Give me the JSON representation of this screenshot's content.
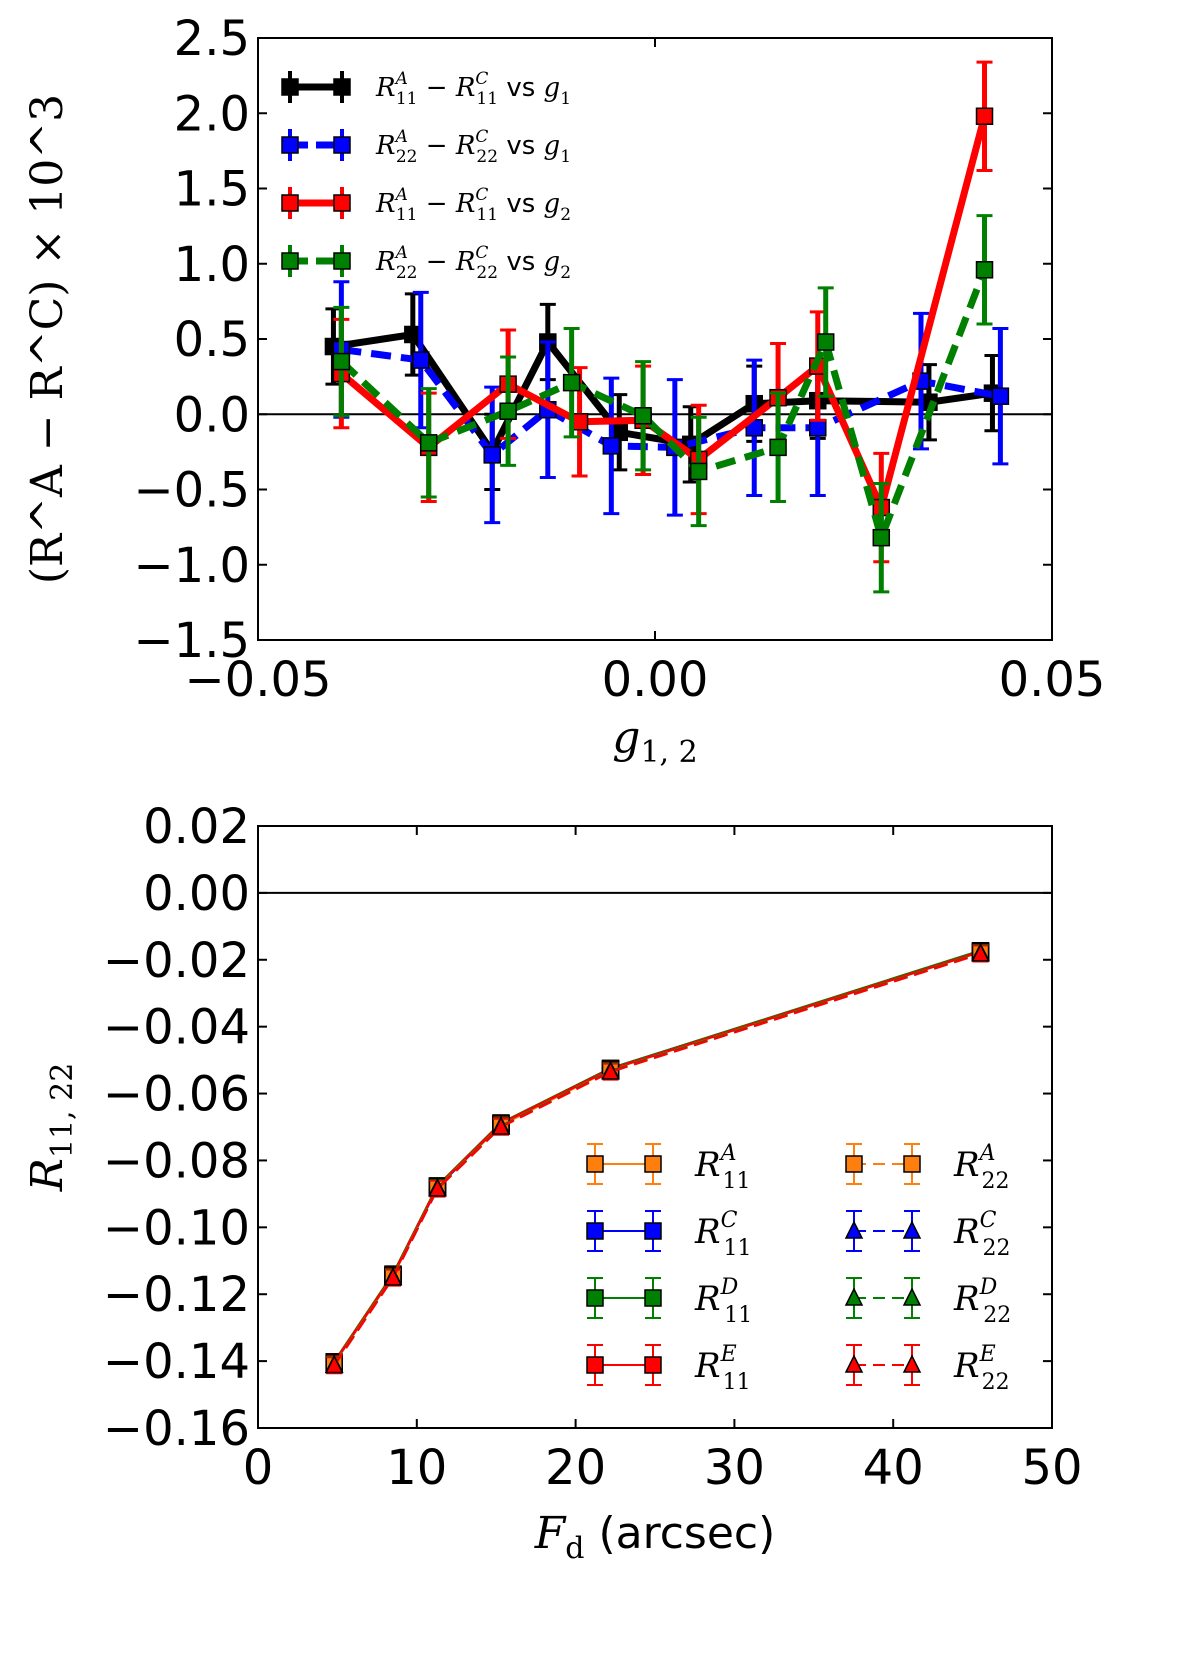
{
  "chart_data": [
    {
      "type": "line",
      "title": "",
      "xlabel": "g_{1,2}",
      "ylabel": "(R^A − R^C) × 10^3",
      "xlim": [
        -0.05,
        0.05
      ],
      "ylim": [
        -1.5,
        2.5
      ],
      "xticks": [
        -0.05,
        0.0,
        0.05
      ],
      "xtick_labels": [
        "−0.05",
        "0.00",
        "0.05"
      ],
      "yticks": [
        -1.5,
        -1.0,
        -0.5,
        0.0,
        0.5,
        1.0,
        1.5,
        2.0,
        2.5
      ],
      "ytick_labels": [
        "−1.5",
        "−1.0",
        "−0.5",
        "0.0",
        "0.5",
        "1.0",
        "1.5",
        "2.0",
        "2.5"
      ],
      "zero_line": 0,
      "legend_position": "top-left",
      "series": [
        {
          "name": "R11A−R11C vs g1",
          "label_main": "R",
          "label_sup": "A",
          "label_sub": "11",
          "label_sup2": "C",
          "label_sub2": "11",
          "label_vs": "vs",
          "label_g": "g",
          "label_gsub": "1",
          "color": "#000000",
          "dashed": false,
          "x": [
            -0.0405,
            -0.0305,
            -0.0205,
            -0.0135,
            -0.0045,
            0.0045,
            0.0125,
            0.0205,
            0.0345,
            0.0425
          ],
          "y": [
            0.45,
            0.53,
            -0.25,
            0.48,
            -0.12,
            -0.2,
            0.07,
            0.09,
            0.08,
            0.14
          ],
          "err": [
            0.25,
            0.27,
            0.25,
            0.25,
            0.25,
            0.25,
            0.25,
            0.25,
            0.25,
            0.25
          ]
        },
        {
          "name": "R22A−R22C vs g1",
          "label_main": "R",
          "label_sup": "A",
          "label_sub": "22",
          "label_sup2": "C",
          "label_sub2": "22",
          "label_vs": "vs",
          "label_g": "g",
          "label_gsub": "1",
          "color": "#0000ff",
          "dashed": true,
          "x": [
            -0.0395,
            -0.0295,
            -0.0205,
            -0.0135,
            -0.0055,
            0.0025,
            0.0125,
            0.0205,
            0.0335,
            0.0435
          ],
          "y": [
            0.43,
            0.36,
            -0.27,
            0.03,
            -0.21,
            -0.22,
            -0.09,
            -0.09,
            0.22,
            0.12
          ],
          "err": [
            0.45,
            0.45,
            0.45,
            0.45,
            0.45,
            0.45,
            0.45,
            0.45,
            0.45,
            0.45
          ]
        },
        {
          "name": "R11A−R11C vs g2",
          "label_main": "R",
          "label_sup": "A",
          "label_sub": "11",
          "label_sup2": "C",
          "label_sub2": "11",
          "label_vs": "vs",
          "label_g": "g",
          "label_gsub": "2",
          "color": "#ff0000",
          "dashed": false,
          "x": [
            -0.0395,
            -0.0285,
            -0.0185,
            -0.0095,
            -0.0015,
            0.0055,
            0.0155,
            0.0205,
            0.0285,
            0.0415
          ],
          "y": [
            0.27,
            -0.22,
            0.2,
            -0.05,
            -0.04,
            -0.3,
            0.11,
            0.32,
            -0.62,
            1.98
          ],
          "err": [
            0.36,
            0.36,
            0.36,
            0.36,
            0.36,
            0.36,
            0.36,
            0.36,
            0.36,
            0.36
          ]
        },
        {
          "name": "R22A−R22C vs g2",
          "label_main": "R",
          "label_sup": "A",
          "label_sub": "22",
          "label_sup2": "C",
          "label_sub2": "22",
          "label_vs": "vs",
          "label_g": "g",
          "label_gsub": "2",
          "color": "#008000",
          "dashed": true,
          "x": [
            -0.0395,
            -0.0285,
            -0.0185,
            -0.0105,
            -0.0015,
            0.0055,
            0.0155,
            0.0215,
            0.0285,
            0.0415
          ],
          "y": [
            0.35,
            -0.19,
            0.02,
            0.21,
            -0.01,
            -0.38,
            -0.22,
            0.48,
            -0.82,
            0.96
          ],
          "err": [
            0.36,
            0.36,
            0.36,
            0.36,
            0.36,
            0.36,
            0.36,
            0.36,
            0.36,
            0.36
          ]
        }
      ]
    },
    {
      "type": "line",
      "title": "",
      "xlabel_main": "F",
      "xlabel_sub": "d",
      "xlabel_unit": "(arcsec)",
      "ylabel": "R_{11,22}",
      "ylabel_main": "R",
      "ylabel_sub": "11, 22",
      "xlim": [
        0,
        50
      ],
      "ylim": [
        -0.16,
        0.02
      ],
      "xticks": [
        0,
        10,
        20,
        30,
        40,
        50
      ],
      "xtick_labels": [
        "0",
        "10",
        "20",
        "30",
        "40",
        "50"
      ],
      "yticks": [
        -0.16,
        -0.14,
        -0.12,
        -0.1,
        -0.08,
        -0.06,
        -0.04,
        -0.02,
        0.0,
        0.02
      ],
      "ytick_labels": [
        "−0.16",
        "−0.14",
        "−0.12",
        "−0.10",
        "−0.08",
        "−0.06",
        "−0.04",
        "−0.02",
        "0.00",
        "0.02"
      ],
      "zero_line": 0,
      "legend_position": "lower-right",
      "x": [
        4.8,
        8.5,
        11.3,
        15.3,
        22.2,
        45.5
      ],
      "series": [
        {
          "name": "R11A",
          "sup": "A",
          "sub": "11",
          "color": "#ff7f0e",
          "dashed": false,
          "marker": "square",
          "y": [
            -0.1405,
            -0.1145,
            -0.0878,
            -0.0695,
            -0.0528,
            -0.0175
          ]
        },
        {
          "name": "R11C",
          "sup": "C",
          "sub": "11",
          "color": "#0000ff",
          "dashed": false,
          "marker": "square",
          "y": [
            -0.1405,
            -0.1142,
            -0.088,
            -0.069,
            -0.0525,
            -0.0175
          ]
        },
        {
          "name": "R11D",
          "sup": "D",
          "sub": "11",
          "color": "#008000",
          "dashed": false,
          "marker": "square",
          "y": [
            -0.1402,
            -0.114,
            -0.0876,
            -0.0688,
            -0.0525,
            -0.0173
          ]
        },
        {
          "name": "R11E",
          "sup": "E",
          "sub": "11",
          "color": "#ff0000",
          "dashed": false,
          "marker": "square",
          "y": [
            -0.1404,
            -0.1143,
            -0.0878,
            -0.069,
            -0.0527,
            -0.0176
          ]
        },
        {
          "name": "R22A",
          "sup": "A",
          "sub": "22",
          "color": "#ff7f0e",
          "dashed": true,
          "marker": "square",
          "y": [
            -0.141,
            -0.1148,
            -0.0882,
            -0.0697,
            -0.0532,
            -0.018
          ]
        },
        {
          "name": "R22C",
          "sup": "C",
          "sub": "22",
          "color": "#0000ff",
          "dashed": true,
          "marker": "triangle",
          "y": [
            -0.1412,
            -0.115,
            -0.0884,
            -0.0698,
            -0.0533,
            -0.0181
          ]
        },
        {
          "name": "R22D",
          "sup": "D",
          "sub": "22",
          "color": "#008000",
          "dashed": true,
          "marker": "triangle",
          "y": [
            -0.1411,
            -0.1149,
            -0.0883,
            -0.0698,
            -0.0533,
            -0.018
          ]
        },
        {
          "name": "R22E",
          "sup": "E",
          "sub": "22",
          "color": "#ff0000",
          "dashed": true,
          "marker": "triangle",
          "y": [
            -0.1413,
            -0.1151,
            -0.0885,
            -0.07,
            -0.0535,
            -0.0182
          ]
        }
      ]
    }
  ]
}
